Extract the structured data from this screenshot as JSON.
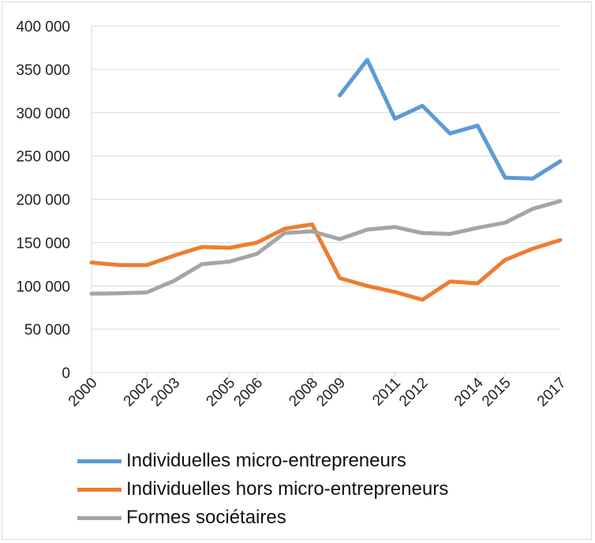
{
  "chart_data": {
    "type": "line",
    "title": "",
    "xlabel": "",
    "ylabel": "",
    "x": [
      "2000",
      "2001",
      "2002",
      "2003",
      "2004",
      "2005",
      "2006",
      "2007",
      "2008",
      "2009",
      "2010",
      "2011",
      "2012",
      "2013",
      "2014",
      "2015",
      "2016",
      "2017"
    ],
    "x_tick_labels": [
      "2000",
      "2002",
      "2003",
      "2005",
      "2006",
      "2008",
      "2009",
      "2011",
      "2012",
      "2014",
      "2015",
      "2017"
    ],
    "ylim": [
      0,
      400000
    ],
    "y_ticks": [
      0,
      50000,
      100000,
      150000,
      200000,
      250000,
      300000,
      350000,
      400000
    ],
    "y_tick_labels": [
      "0",
      "50 000",
      "100 000",
      "150 000",
      "200 000",
      "250 000",
      "300 000",
      "350 000",
      "400 000"
    ],
    "grid": "horizontal",
    "legend_position": "bottom",
    "series": [
      {
        "name": "Individuelles micro-entrepreneurs",
        "color": "#5b9bd5",
        "values": [
          null,
          null,
          null,
          null,
          null,
          null,
          null,
          null,
          null,
          320000,
          361000,
          293000,
          308000,
          276000,
          285000,
          225000,
          224000,
          244000
        ]
      },
      {
        "name": "Individuelles hors micro-entrepreneurs",
        "color": "#ed7d31",
        "values": [
          127000,
          124000,
          124000,
          135000,
          145000,
          144000,
          150000,
          166000,
          171000,
          109000,
          100000,
          93000,
          84000,
          105000,
          103000,
          130000,
          143000,
          153000
        ]
      },
      {
        "name": "Formes sociétaires",
        "color": "#a5a5a5",
        "values": [
          91000,
          91500,
          92500,
          106000,
          125000,
          128000,
          137000,
          161000,
          163000,
          154000,
          165000,
          168000,
          161000,
          160000,
          167000,
          173000,
          189000,
          198000
        ]
      }
    ]
  }
}
